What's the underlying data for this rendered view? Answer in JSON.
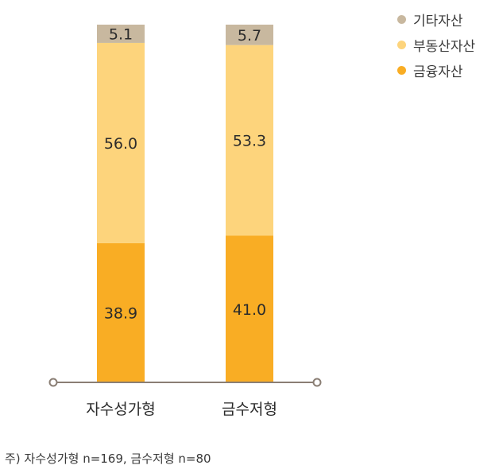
{
  "chart_data": {
    "type": "bar",
    "stacked": true,
    "categories": [
      "자수성가형",
      "금수저형"
    ],
    "series": [
      {
        "name": "금융자산",
        "values": [
          38.9,
          41.0
        ],
        "color": "#f9ad24"
      },
      {
        "name": "부동산자산",
        "values": [
          56.0,
          53.3
        ],
        "color": "#fdd47c"
      },
      {
        "name": "기타자산",
        "values": [
          5.1,
          5.7
        ],
        "color": "#c8b89f"
      }
    ],
    "ylim": [
      0,
      100
    ],
    "legend_order": [
      "기타자산",
      "부동산자산",
      "금융자산"
    ],
    "legend_position": "top-right",
    "grid": false
  },
  "note": "주) 자수성가형 n=169, 금수저형 n=80"
}
